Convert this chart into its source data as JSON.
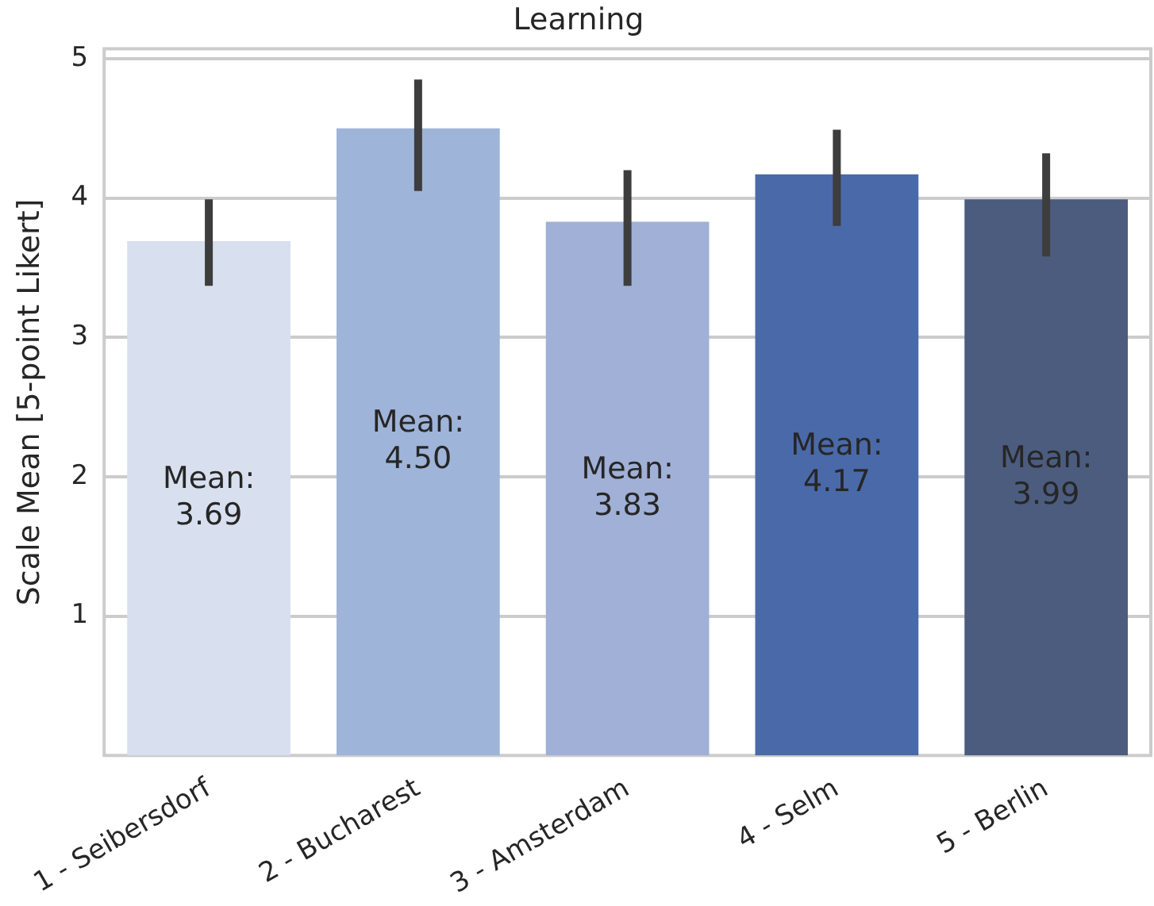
{
  "chart_data": {
    "type": "bar",
    "title": "Learning",
    "ylabel": "Scale Mean [5-point Likert]",
    "categories": [
      "1 - Seibersdorf",
      "2 - Bucharest",
      "3 - Amsterdam",
      "4 - Selm",
      "5 - Berlin"
    ],
    "values": [
      3.69,
      4.5,
      3.83,
      4.17,
      3.99
    ],
    "colors": [
      "#d8dfee",
      "#9fb4d9",
      "#a0b0d6",
      "#4a69a8",
      "#4b5c7e"
    ],
    "errors": [
      [
        3.37,
        3.99
      ],
      [
        4.05,
        4.85
      ],
      [
        3.37,
        4.2
      ],
      [
        3.8,
        4.49
      ],
      [
        3.58,
        4.32
      ]
    ],
    "value_labels": [
      "Mean:\n3.69",
      "Mean:\n4.50",
      "Mean:\n3.83",
      "Mean:\n4.17",
      "Mean:\n3.99"
    ],
    "ylim": [
      0,
      5.07
    ],
    "yticks": [
      1,
      2,
      3,
      4,
      5
    ],
    "grid": "y",
    "legend": false
  }
}
